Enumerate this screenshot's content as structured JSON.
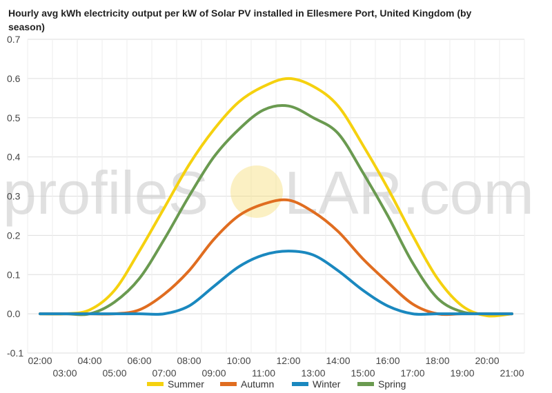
{
  "chart_data": {
    "type": "line",
    "title": "Hourly avg kWh electricity output per kW of Solar PV installed in Ellesmere Port, United Kingdom (by season)",
    "x": [
      "02:00",
      "03:00",
      "04:00",
      "05:00",
      "06:00",
      "07:00",
      "08:00",
      "09:00",
      "10:00",
      "11:00",
      "12:00",
      "13:00",
      "14:00",
      "15:00",
      "16:00",
      "17:00",
      "18:00",
      "19:00",
      "20:00",
      "21:00"
    ],
    "x_tick_labels_top": [
      "02:00",
      "04:00",
      "06:00",
      "08:00",
      "10:00",
      "12:00",
      "14:00",
      "16:00",
      "18:00",
      "20:00"
    ],
    "x_tick_labels_bottom": [
      "03:00",
      "05:00",
      "07:00",
      "09:00",
      "11:00",
      "13:00",
      "15:00",
      "17:00",
      "19:00",
      "21:00"
    ],
    "y_ticks": [
      "-0.1",
      "0.0",
      "0.1",
      "0.2",
      "0.3",
      "0.4",
      "0.5",
      "0.6",
      "0.7"
    ],
    "ylim": [
      -0.1,
      0.7
    ],
    "grid": true,
    "legend_position": "bottom",
    "series": [
      {
        "name": "Summer",
        "color": "#f5d10f",
        "values": [
          0.0,
          0.0,
          0.01,
          0.06,
          0.16,
          0.27,
          0.38,
          0.47,
          0.54,
          0.58,
          0.6,
          0.58,
          0.53,
          0.43,
          0.32,
          0.2,
          0.09,
          0.02,
          -0.005,
          0.0
        ]
      },
      {
        "name": "Autumn",
        "color": "#e06d20",
        "values": [
          0.0,
          0.0,
          0.0,
          0.0,
          0.01,
          0.05,
          0.11,
          0.19,
          0.25,
          0.28,
          0.29,
          0.26,
          0.21,
          0.14,
          0.08,
          0.025,
          0.0,
          0.0,
          0.0,
          0.0
        ]
      },
      {
        "name": "Winter",
        "color": "#1a88bf",
        "values": [
          0.0,
          0.0,
          0.0,
          0.0,
          0.0,
          0.0,
          0.02,
          0.07,
          0.12,
          0.15,
          0.16,
          0.15,
          0.11,
          0.06,
          0.02,
          0.0,
          0.0,
          0.0,
          0.0,
          0.0
        ]
      },
      {
        "name": "Spring",
        "color": "#6a9a50",
        "values": [
          0.0,
          0.0,
          0.0,
          0.03,
          0.09,
          0.19,
          0.3,
          0.4,
          0.47,
          0.52,
          0.53,
          0.5,
          0.46,
          0.36,
          0.25,
          0.13,
          0.04,
          0.005,
          0.0,
          0.0
        ]
      }
    ]
  },
  "watermark": {
    "text_left": "profileS",
    "text_right": "LAR.com",
    "sun_color": "#f7de7a"
  }
}
